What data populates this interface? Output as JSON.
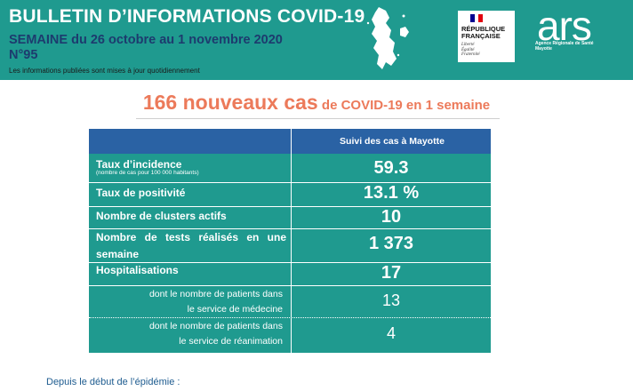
{
  "header": {
    "title": "BULLETIN D’INFORMATIONS COVID-19",
    "week": "SEMAINE du 26 octobre au 1 novembre 2020",
    "number": "N°95",
    "note": "Les informations publiées sont mises à jour quotidiennement",
    "colors": {
      "teal": "#1f9a8f",
      "navy": "#1d3b6e"
    }
  },
  "logos": {
    "rf_name": [
      "RÉPUBLIQUE",
      "FRANÇAISE"
    ],
    "rf_motto": [
      "Liberté",
      "Égalité",
      "Fraternité"
    ],
    "ars_word": "ars",
    "ars_sub": [
      "Agence Régionale de Santé",
      "Mayotte"
    ]
  },
  "headline": {
    "big": "166 nouveaux cas",
    "small": " de COVID-19 en 1 semaine",
    "color": "#ec7a5a"
  },
  "table": {
    "column_header": "Suivi des cas à Mayotte",
    "header_color": "#2a62a4",
    "rows": [
      {
        "label": "Taux d’incidence",
        "note": "(nombre de cas pour 100 000 habitants)",
        "value": "59.3"
      },
      {
        "label": "Taux de positivité",
        "value": "13.1 %"
      },
      {
        "label": "Nombre de clusters actifs",
        "value": "10"
      },
      {
        "label_lines": [
          "Nombre de tests réalisés en une",
          "semaine"
        ],
        "value": "1 373"
      },
      {
        "label": "Hospitalisations",
        "value": "17"
      },
      {
        "label_lines": [
          "dont le nombre de patients dans",
          "le service de médecine"
        ],
        "value": "13"
      },
      {
        "label_lines": [
          "dont le nombre de patients dans",
          "le service de réanimation"
        ],
        "value": "4"
      }
    ]
  },
  "footer": {
    "text": "Depuis le début de l’épidémie :"
  }
}
